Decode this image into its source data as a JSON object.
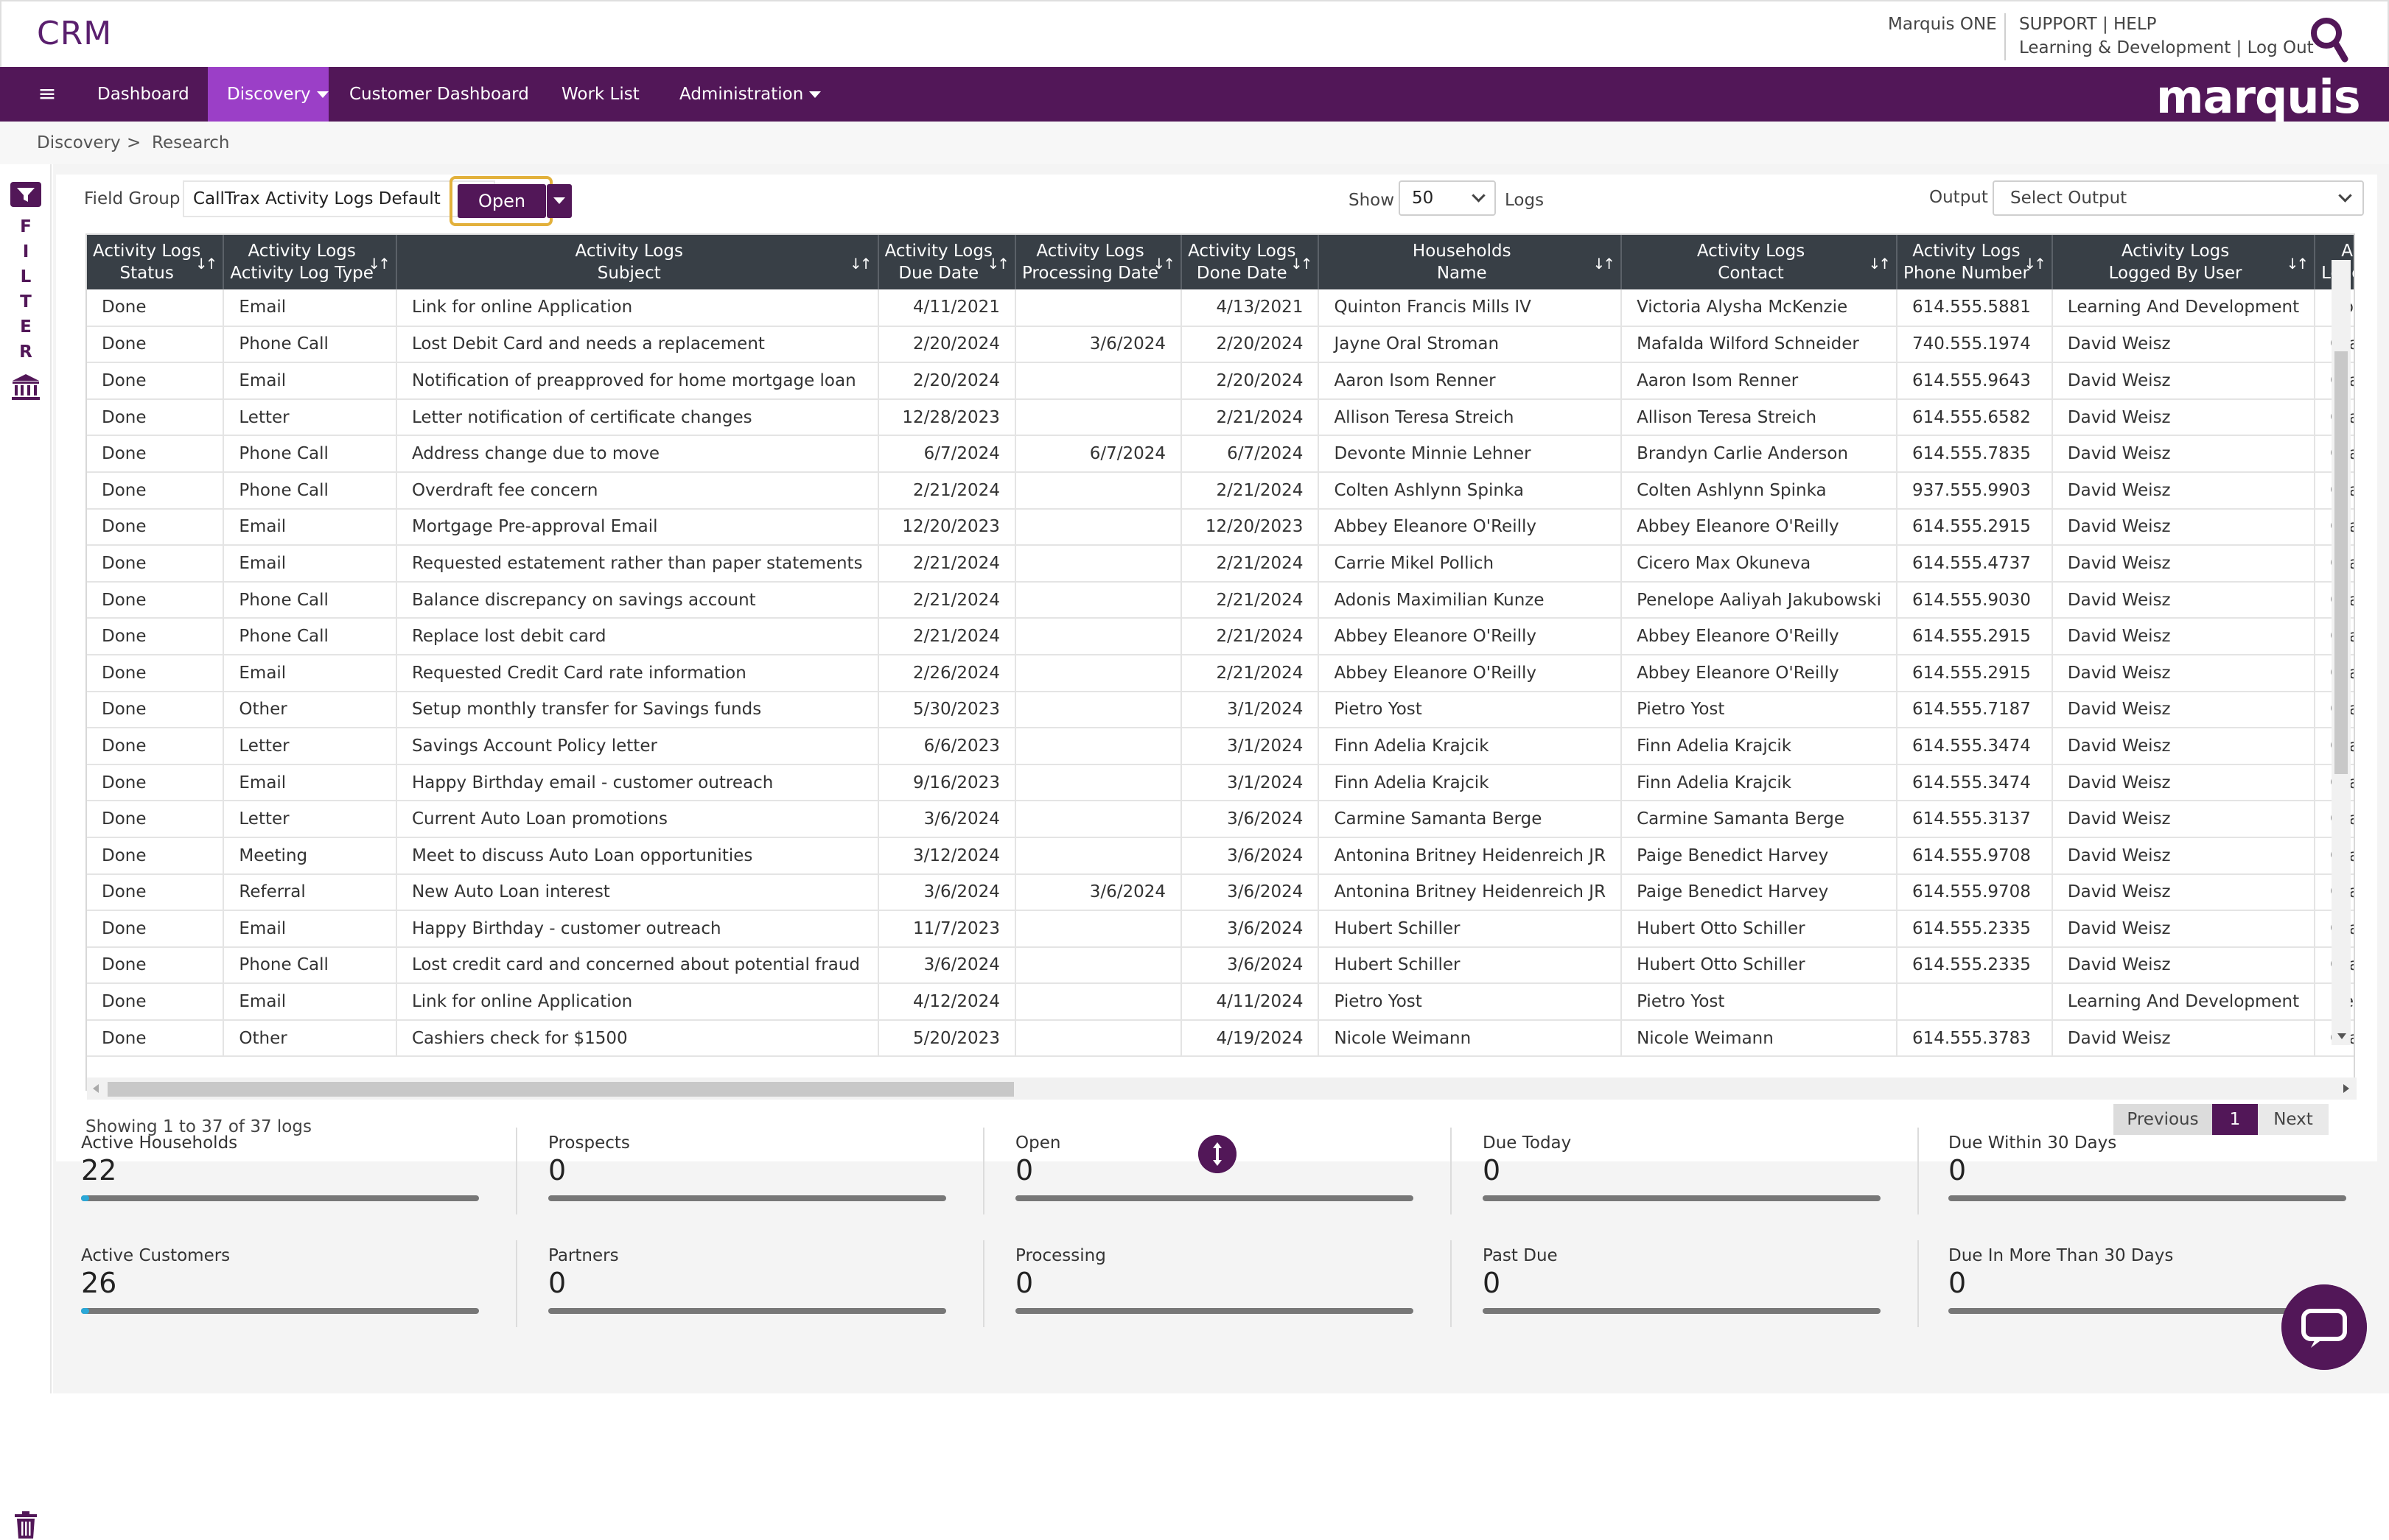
{
  "header": {
    "app_title": "CRM",
    "marquis_one": "Marquis ONE",
    "support_help": "SUPPORT | HELP",
    "ld_logout": "Learning & Development | Log Out"
  },
  "nav": {
    "menu_icon": "hamburger-icon",
    "items": [
      "Dashboard",
      "Discovery",
      "Customer Dashboard",
      "Work List",
      "Administration"
    ],
    "active": "Discovery",
    "logo": "marquis"
  },
  "breadcrumb": {
    "root": "Discovery",
    "sep": ">",
    "current": "Research"
  },
  "leftrail": {
    "filter_letters": [
      "F",
      "I",
      "L",
      "T",
      "E",
      "R"
    ]
  },
  "toolbar": {
    "field_group_label": "Field Group",
    "field_group_value": "CallTrax Activity Logs Default",
    "open_label": "Open",
    "show_label": "Show",
    "show_value": "50",
    "logs_label": "Logs",
    "output_label": "Output",
    "output_placeholder": "Select Output"
  },
  "table": {
    "columns": [
      [
        "Activity Logs",
        "Status"
      ],
      [
        "Activity Logs",
        "Activity Log Type"
      ],
      [
        "Activity Logs",
        "Subject"
      ],
      [
        "Activity Logs",
        "Due Date"
      ],
      [
        "Activity Logs",
        "Processing Date"
      ],
      [
        "Activity Logs",
        "Done Date"
      ],
      [
        "Households",
        "Name"
      ],
      [
        "Activity Logs",
        "Contact"
      ],
      [
        "Activity Logs",
        "Phone Number"
      ],
      [
        "Activity Logs",
        "Logged By User"
      ],
      [
        "A",
        "Logge"
      ]
    ],
    "rows": [
      [
        "Done",
        "Email",
        "Link for online Application",
        "4/11/2021",
        "",
        "4/13/2021",
        "Quinton Francis Mills IV",
        "Victoria Alysha McKenzie",
        "614.555.5881",
        "Learning And Development",
        "Do"
      ],
      [
        "Done",
        "Phone Call",
        "Lost Debit Card and needs a replacement",
        "2/20/2024",
        "3/6/2024",
        "2/20/2024",
        "Jayne Oral Stroman",
        "Mafalda Wilford Schneider",
        "740.555.1974",
        "David Weisz",
        "Cra"
      ],
      [
        "Done",
        "Email",
        "Notification of preapproved for home mortgage loan",
        "2/20/2024",
        "",
        "2/20/2024",
        "Aaron Isom Renner",
        "Aaron Isom Renner",
        "614.555.9643",
        "David Weisz",
        "Cra"
      ],
      [
        "Done",
        "Letter",
        "Letter notification of certificate changes",
        "12/28/2023",
        "",
        "2/21/2024",
        "Allison Teresa Streich",
        "Allison Teresa Streich",
        "614.555.6582",
        "David Weisz",
        "Cra"
      ],
      [
        "Done",
        "Phone Call",
        "Address change due to move",
        "6/7/2024",
        "6/7/2024",
        "6/7/2024",
        "Devonte Minnie Lehner",
        "Brandyn Carlie Anderson",
        "614.555.7835",
        "David Weisz",
        "Cra"
      ],
      [
        "Done",
        "Phone Call",
        "Overdraft fee concern",
        "2/21/2024",
        "",
        "2/21/2024",
        "Colten Ashlynn Spinka",
        "Colten Ashlynn Spinka",
        "937.555.9903",
        "David Weisz",
        "Cra"
      ],
      [
        "Done",
        "Email",
        "Mortgage Pre-approval Email",
        "12/20/2023",
        "",
        "12/20/2023",
        "Abbey Eleanore O'Reilly",
        "Abbey Eleanore O'Reilly",
        "614.555.2915",
        "David Weisz",
        "Cra"
      ],
      [
        "Done",
        "Email",
        "Requested estatement rather than paper statements",
        "2/21/2024",
        "",
        "2/21/2024",
        "Carrie Mikel Pollich",
        "Cicero Max Okuneva",
        "614.555.4737",
        "David Weisz",
        "Cra"
      ],
      [
        "Done",
        "Phone Call",
        "Balance discrepancy on savings account",
        "2/21/2024",
        "",
        "2/21/2024",
        "Adonis Maximilian Kunze",
        "Penelope Aaliyah Jakubowski",
        "614.555.9030",
        "David Weisz",
        "Cra"
      ],
      [
        "Done",
        "Phone Call",
        "Replace lost debit card",
        "2/21/2024",
        "",
        "2/21/2024",
        "Abbey Eleanore O'Reilly",
        "Abbey Eleanore O'Reilly",
        "614.555.2915",
        "David Weisz",
        "Cra"
      ],
      [
        "Done",
        "Email",
        "Requested Credit Card rate information",
        "2/26/2024",
        "",
        "2/21/2024",
        "Abbey Eleanore O'Reilly",
        "Abbey Eleanore O'Reilly",
        "614.555.2915",
        "David Weisz",
        "Cra"
      ],
      [
        "Done",
        "Other",
        "Setup monthly transfer for Savings funds",
        "5/30/2023",
        "",
        "3/1/2024",
        "Pietro Yost",
        "Pietro Yost",
        "614.555.7187",
        "David Weisz",
        "Cra"
      ],
      [
        "Done",
        "Letter",
        "Savings Account Policy letter",
        "6/6/2023",
        "",
        "3/1/2024",
        "Finn Adelia Krajcik",
        "Finn Adelia Krajcik",
        "614.555.3474",
        "David Weisz",
        "Cra"
      ],
      [
        "Done",
        "Email",
        "Happy Birthday email - customer outreach",
        "9/16/2023",
        "",
        "3/1/2024",
        "Finn Adelia Krajcik",
        "Finn Adelia Krajcik",
        "614.555.3474",
        "David Weisz",
        "Cra"
      ],
      [
        "Done",
        "Letter",
        "Current Auto Loan promotions",
        "3/6/2024",
        "",
        "3/6/2024",
        "Carmine Samanta Berge",
        "Carmine Samanta Berge",
        "614.555.3137",
        "David Weisz",
        "Cra"
      ],
      [
        "Done",
        "Meeting",
        "Meet to discuss Auto Loan opportunities",
        "3/12/2024",
        "",
        "3/6/2024",
        "Antonina Britney Heidenreich JR",
        "Paige Benedict Harvey",
        "614.555.9708",
        "David Weisz",
        "Cra"
      ],
      [
        "Done",
        "Referral",
        "New Auto Loan interest",
        "3/6/2024",
        "3/6/2024",
        "3/6/2024",
        "Antonina Britney Heidenreich JR",
        "Paige Benedict Harvey",
        "614.555.9708",
        "David Weisz",
        "Cra"
      ],
      [
        "Done",
        "Email",
        "Happy Birthday - customer outreach",
        "11/7/2023",
        "",
        "3/6/2024",
        "Hubert Schiller",
        "Hubert Otto Schiller",
        "614.555.2335",
        "David Weisz",
        "Cra"
      ],
      [
        "Done",
        "Phone Call",
        "Lost credit card and concerned about potential fraud",
        "3/6/2024",
        "",
        "3/6/2024",
        "Hubert Schiller",
        "Hubert Otto Schiller",
        "614.555.2335",
        "David Weisz",
        "Cra"
      ],
      [
        "Done",
        "Email",
        "Link for online Application",
        "4/12/2024",
        "",
        "4/11/2024",
        "Pietro Yost",
        "Pietro Yost",
        "",
        "Learning And Development",
        "De"
      ],
      [
        "Done",
        "Other",
        "Cashiers check for $1500",
        "5/20/2023",
        "",
        "4/19/2024",
        "Nicole Weimann",
        "Nicole Weimann",
        "614.555.3783",
        "David Weisz",
        "Cra"
      ]
    ]
  },
  "footer": {
    "showing": "Showing 1 to 37 of 37 logs",
    "prev": "Previous",
    "page": "1",
    "next": "Next"
  },
  "stats": [
    {
      "label": "Active Households",
      "value": "22",
      "fill": 0.02
    },
    {
      "label": "Prospects",
      "value": "0",
      "fill": 0
    },
    {
      "label": "Open",
      "value": "0",
      "fill": 0
    },
    {
      "label": "Due Today",
      "value": "0",
      "fill": 0
    },
    {
      "label": "Due Within 30 Days",
      "value": "0",
      "fill": 0
    },
    {
      "label": "Active Customers",
      "value": "26",
      "fill": 0.02
    },
    {
      "label": "Partners",
      "value": "0",
      "fill": 0
    },
    {
      "label": "Processing",
      "value": "0",
      "fill": 0
    },
    {
      "label": "Past Due",
      "value": "0",
      "fill": 0
    },
    {
      "label": "Due In More Than 30 Days",
      "value": "0",
      "fill": 0
    }
  ],
  "colors": {
    "brand": "#521758",
    "active_nav": "#9b3fc7",
    "highlight": "#e2b13c",
    "progress": "#2aa8d8"
  }
}
